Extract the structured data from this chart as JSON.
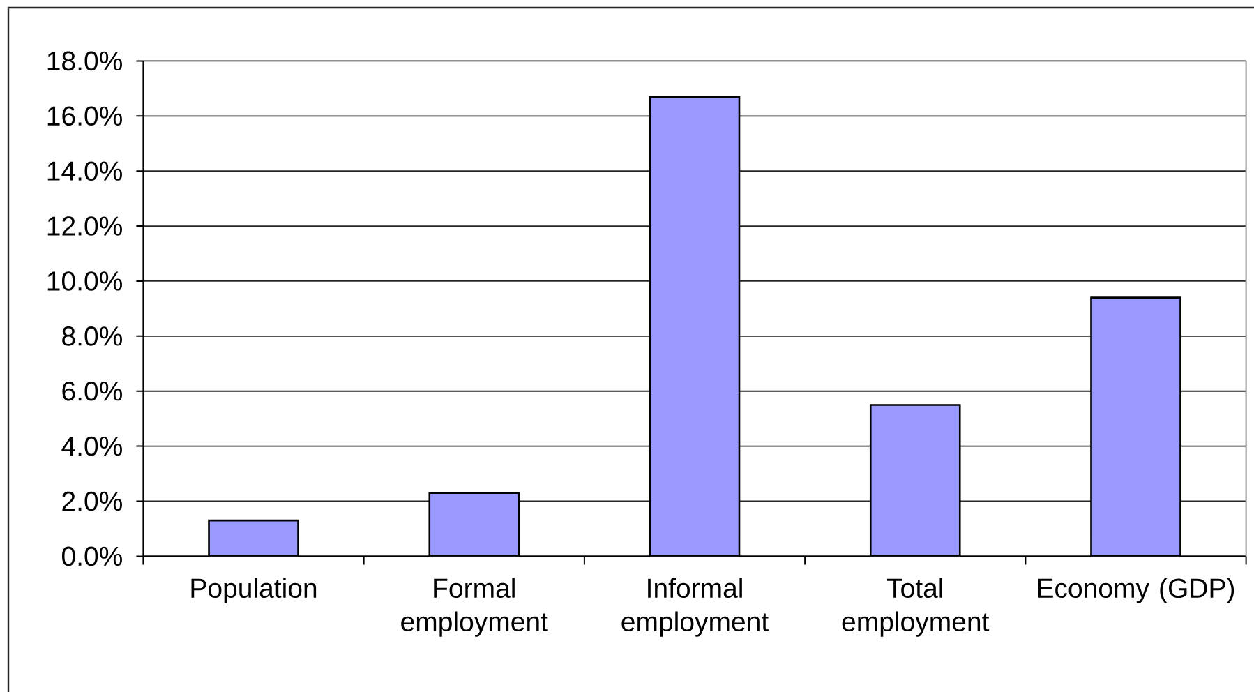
{
  "chart_data": {
    "type": "bar",
    "categories": [
      "Population",
      "Formal employment",
      "Informal employment",
      "Total employment",
      "Economy (GDP)"
    ],
    "values": [
      1.3,
      2.3,
      16.7,
      5.5,
      9.4
    ],
    "color": "#9999ff",
    "ylim": [
      0,
      18
    ],
    "yticks": [
      {
        "value": 0,
        "label": "0.0%"
      },
      {
        "value": 2,
        "label": "2.0%"
      },
      {
        "value": 4,
        "label": "4.0%"
      },
      {
        "value": 6,
        "label": "6.0%"
      },
      {
        "value": 8,
        "label": "8.0%"
      },
      {
        "value": 10,
        "label": "10.0%"
      },
      {
        "value": 12,
        "label": "12.0%"
      },
      {
        "value": 14,
        "label": "14.0%"
      },
      {
        "value": 16,
        "label": "16.0%"
      },
      {
        "value": 18,
        "label": "18.0%"
      }
    ],
    "grid": "y"
  }
}
